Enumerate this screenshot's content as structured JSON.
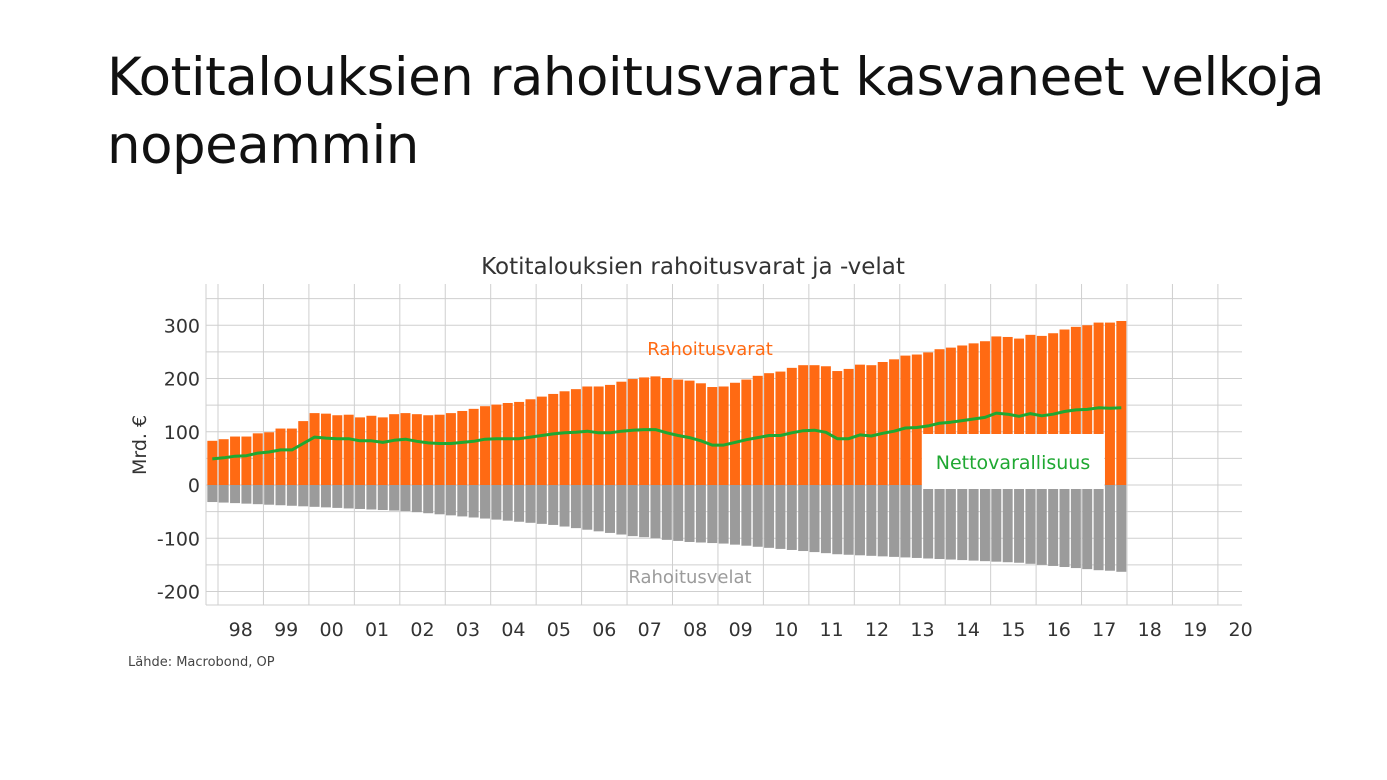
{
  "slide": {
    "title": "Kotitalouksien rahoitusvarat kasvaneet velkoja nopeammin"
  },
  "chart_data": {
    "type": "bar",
    "title": "Kotitalouksien rahoitusvarat ja -velat",
    "ylabel": "Mrd. €",
    "ylim": [
      -225,
      375
    ],
    "yticks": [
      300,
      200,
      100,
      0,
      -100,
      -200
    ],
    "ytick_labels": [
      "300",
      "200",
      "100",
      "0",
      "-100",
      "-200"
    ],
    "xtick_labels": [
      "98",
      "99",
      "00",
      "01",
      "02",
      "03",
      "04",
      "05",
      "06",
      "07",
      "08",
      "09",
      "10",
      "11",
      "12",
      "13",
      "14",
      "15",
      "16",
      "17",
      "18",
      "19",
      "20"
    ],
    "grid": true,
    "quarters_start": "1997Q4",
    "quarters_end": "2017Q4",
    "series": [
      {
        "name": "Rahoitusvarat",
        "kind": "bar",
        "color": "#ff6a13",
        "values": [
          83,
          86,
          91,
          91,
          97,
          99,
          106,
          106,
          120,
          135,
          134,
          131,
          132,
          127,
          130,
          127,
          133,
          135,
          133,
          131,
          132,
          135,
          139,
          143,
          148,
          151,
          154,
          156,
          161,
          166,
          171,
          176,
          180,
          185,
          185,
          188,
          194,
          199,
          202,
          204,
          201,
          198,
          196,
          191,
          184,
          185,
          192,
          198,
          205,
          210,
          213,
          220,
          225,
          225,
          223,
          214,
          218,
          226,
          225,
          231,
          236,
          243,
          245,
          249,
          255,
          258,
          262,
          266,
          270,
          279,
          278,
          275,
          282,
          280,
          285,
          292,
          297,
          300,
          305,
          305,
          308
        ]
      },
      {
        "name": "Rahoitusvelat",
        "kind": "bar",
        "color": "#9b9b9b",
        "values": [
          -32,
          -33,
          -34,
          -35,
          -36,
          -37,
          -38,
          -39,
          -40,
          -41,
          -42,
          -43,
          -44,
          -45,
          -46,
          -47,
          -48,
          -49,
          -51,
          -53,
          -55,
          -57,
          -59,
          -61,
          -63,
          -65,
          -67,
          -69,
          -71,
          -73,
          -75,
          -78,
          -81,
          -84,
          -87,
          -90,
          -93,
          -96,
          -98,
          -100,
          -103,
          -105,
          -107,
          -108,
          -109,
          -110,
          -112,
          -114,
          -116,
          -118,
          -120,
          -122,
          -124,
          -126,
          -128,
          -130,
          -131,
          -132,
          -133,
          -134,
          -135,
          -136,
          -137,
          -138,
          -139,
          -140,
          -141,
          -142,
          -143,
          -144,
          -145,
          -146,
          -148,
          -150,
          -152,
          -154,
          -156,
          -158,
          -160,
          -161,
          -163
        ]
      },
      {
        "name": "Nettovarallisuus",
        "kind": "line",
        "color": "#1fa832",
        "values": [
          49,
          51,
          54,
          55,
          60,
          62,
          66,
          66,
          78,
          90,
          88,
          87,
          87,
          83,
          83,
          80,
          84,
          86,
          82,
          79,
          78,
          78,
          80,
          82,
          86,
          87,
          87,
          87,
          90,
          93,
          96,
          98,
          99,
          101,
          98,
          98,
          101,
          103,
          104,
          104,
          98,
          93,
          89,
          83,
          75,
          75,
          80,
          85,
          89,
          93,
          93,
          98,
          102,
          103,
          99,
          87,
          87,
          94,
          92,
          97,
          101,
          107,
          108,
          111,
          116,
          118,
          121,
          124,
          127,
          135,
          133,
          129,
          134,
          130,
          133,
          138,
          141,
          142,
          145,
          144,
          145
        ]
      }
    ],
    "annotations": [
      {
        "text": "Rahoitusvarat",
        "color": "#ff6a13"
      },
      {
        "text": "Nettovarallisuus",
        "color": "#1fa832",
        "boxed": true
      },
      {
        "text": "Rahoitusvelat",
        "color": "#9b9b9b"
      }
    ],
    "source": "Lähde: Macrobond, OP"
  }
}
